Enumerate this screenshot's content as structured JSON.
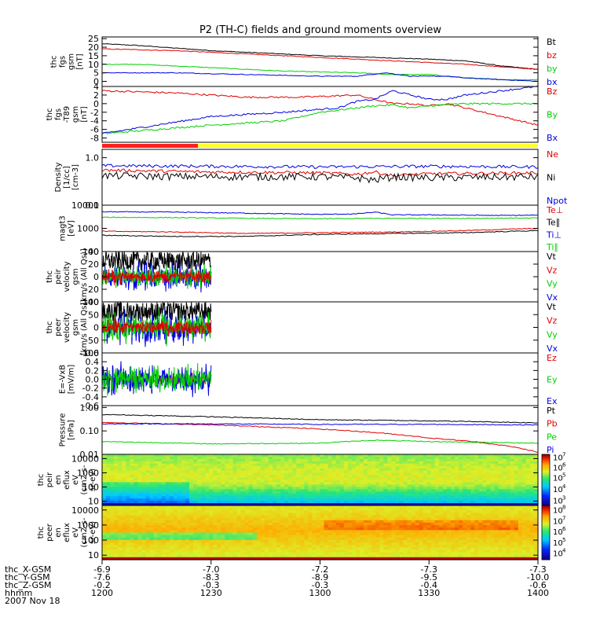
{
  "title": "P2 (TH-C) fields and ground moments overview",
  "colors": {
    "black": "#000000",
    "red": "#e00000",
    "green": "#00d000",
    "blue": "#0000e0",
    "yellow": "#ffff30"
  },
  "panels": [
    {
      "id": "fgs",
      "ylabel": [
        "thc",
        "fgs",
        "gsm",
        "[nT]"
      ],
      "ylim": [
        -3,
        26
      ],
      "scale": "linear",
      "ticks": [
        {
          "v": 25,
          "l": "25"
        },
        {
          "v": 20,
          "l": "20"
        },
        {
          "v": 15,
          "l": "15"
        },
        {
          "v": 10,
          "l": "10"
        },
        {
          "v": 5,
          "l": "5"
        },
        {
          "v": 0,
          "l": "0"
        }
      ],
      "legend": [
        {
          "text": "Bt",
          "color": "black"
        },
        {
          "text": "bz",
          "color": "red"
        },
        {
          "text": "by",
          "color": "green"
        },
        {
          "text": "bx",
          "color": "blue"
        }
      ]
    },
    {
      "id": "fgs_t89",
      "ylabel": [
        "thc",
        "fgs",
        "-T89",
        "gsm",
        "[nT]"
      ],
      "ylim": [
        -9,
        4
      ],
      "scale": "linear",
      "ticks": [
        {
          "v": 4,
          "l": "4"
        },
        {
          "v": 2,
          "l": "2"
        },
        {
          "v": 0,
          "l": "0"
        },
        {
          "v": -2,
          "l": "-2"
        },
        {
          "v": -4,
          "l": "-4"
        },
        {
          "v": -6,
          "l": "-6"
        },
        {
          "v": -8,
          "l": "-8"
        }
      ],
      "legend": [
        {
          "text": "Bz",
          "color": "red"
        },
        {
          "text": "By",
          "color": "green"
        },
        {
          "text": "Bx",
          "color": "blue"
        }
      ]
    },
    {
      "id": "density",
      "ylabel": [
        "Density",
        "[1/cc]",
        "[cm-3]"
      ],
      "ylim": [
        0.1,
        1.5
      ],
      "scale": "log",
      "ticks": [
        {
          "v": 1.0,
          "l": "1.0"
        },
        {
          "v": 0.1,
          "l": "0.1"
        }
      ],
      "legend": [
        {
          "text": "Ne",
          "color": "red"
        },
        {
          "text": "Ni",
          "color": "black"
        },
        {
          "text": "Npot",
          "color": "blue"
        }
      ]
    },
    {
      "id": "temp",
      "ylabel": [
        "magt3",
        "[eV]"
      ],
      "ylim": [
        100,
        10000
      ],
      "scale": "log",
      "ticks": [
        {
          "v": 10000,
          "l": "10000"
        },
        {
          "v": 1000,
          "l": "1000"
        },
        {
          "v": 100,
          "l": "100"
        }
      ],
      "legend": [
        {
          "text": "Te⊥",
          "color": "red"
        },
        {
          "text": "Te∥",
          "color": "black"
        },
        {
          "text": "Ti⊥",
          "color": "blue"
        },
        {
          "text": "Ti∥",
          "color": "green"
        }
      ]
    },
    {
      "id": "peir_vel",
      "ylabel": [
        "thc",
        "peir",
        "velocity",
        "gsm",
        "[km/s (All Qs)]"
      ],
      "ylim": [
        -40,
        40
      ],
      "scale": "linear",
      "ticks": [
        {
          "v": 40,
          "l": "40"
        },
        {
          "v": 20,
          "l": "20"
        },
        {
          "v": 0,
          "l": "0"
        },
        {
          "v": -20,
          "l": "-20"
        },
        {
          "v": -40,
          "l": "-40"
        }
      ],
      "legend": [
        {
          "text": "Vt",
          "color": "black"
        },
        {
          "text": "Vz",
          "color": "red"
        },
        {
          "text": "Vy",
          "color": "green"
        },
        {
          "text": "Vx",
          "color": "blue"
        }
      ]
    },
    {
      "id": "peer_vel",
      "ylabel": [
        "thc",
        "peer",
        "velocity",
        "gsm",
        "[km/s (All Qs)]"
      ],
      "ylim": [
        -100,
        100
      ],
      "scale": "linear",
      "ticks": [
        {
          "v": 100,
          "l": "100"
        },
        {
          "v": 50,
          "l": "50"
        },
        {
          "v": 0,
          "l": "0"
        },
        {
          "v": -50,
          "l": "-50"
        },
        {
          "v": -100,
          "l": "-100"
        }
      ],
      "legend": [
        {
          "text": "Vt",
          "color": "black"
        },
        {
          "text": "Vz",
          "color": "red"
        },
        {
          "text": "Vy",
          "color": "green"
        },
        {
          "text": "Vx",
          "color": "blue"
        }
      ]
    },
    {
      "id": "efield",
      "ylabel": [
        "E=-VxB",
        "[mV/m]"
      ],
      "ylim": [
        -0.6,
        0.6
      ],
      "scale": "linear",
      "ticks": [
        {
          "v": 0.6,
          "l": "0.6"
        },
        {
          "v": 0.4,
          "l": "0.4"
        },
        {
          "v": 0.2,
          "l": "0.2"
        },
        {
          "v": 0.0,
          "l": "0.0"
        },
        {
          "v": -0.2,
          "l": "-0.2"
        },
        {
          "v": -0.4,
          "l": "-0.4"
        },
        {
          "v": -0.6,
          "l": "-0.6"
        }
      ],
      "legend": [
        {
          "text": "Ez",
          "color": "red"
        },
        {
          "text": "Ey",
          "color": "green"
        },
        {
          "text": "Ex",
          "color": "blue"
        }
      ]
    },
    {
      "id": "pressure",
      "ylabel": [
        "Pressure",
        "[nPa]"
      ],
      "ylim": [
        0.01,
        1.2
      ],
      "scale": "log",
      "ticks": [
        {
          "v": 1.0,
          "l": "1.00"
        },
        {
          "v": 0.1,
          "l": "0.10"
        },
        {
          "v": 0.01,
          "l": "0.01"
        }
      ],
      "legend": [
        {
          "text": "Pt",
          "color": "black"
        },
        {
          "text": "Pb",
          "color": "red"
        },
        {
          "text": "Pe",
          "color": "green"
        },
        {
          "text": "Pi",
          "color": "blue"
        }
      ]
    },
    {
      "id": "peir_spec",
      "ylabel": [
        "thc",
        "peir",
        "en",
        "eflux",
        "eV",
        "(cm2-s-",
        "sr-eV)"
      ],
      "ylim": [
        5,
        20000
      ],
      "scale": "log",
      "ticks": [
        {
          "v": 10000,
          "l": "10000"
        },
        {
          "v": 1000,
          "l": "1000"
        },
        {
          "v": 100,
          "l": "100"
        },
        {
          "v": 10,
          "l": "10"
        }
      ],
      "cbar": [
        {
          "e": "7",
          "pos": 0.05
        },
        {
          "e": "6",
          "pos": 0.25
        },
        {
          "e": "5",
          "pos": 0.45
        },
        {
          "e": "4",
          "pos": 0.68
        },
        {
          "e": "3",
          "pos": 0.9
        }
      ]
    },
    {
      "id": "peer_spec",
      "ylabel": [
        "thc",
        "peer",
        "en",
        "eflux",
        "eV",
        "(cm2-s-",
        "sr-eV)"
      ],
      "ylim": [
        5,
        20000
      ],
      "scale": "log",
      "ticks": [
        {
          "v": 10000,
          "l": "10000"
        },
        {
          "v": 1000,
          "l": "1000"
        },
        {
          "v": 100,
          "l": "100"
        },
        {
          "v": 10,
          "l": "10"
        }
      ],
      "cbar": [
        {
          "e": "8",
          "pos": 0.08
        },
        {
          "e": "7",
          "pos": 0.28
        },
        {
          "e": "6",
          "pos": 0.48
        },
        {
          "e": "5",
          "pos": 0.68
        },
        {
          "e": "4",
          "pos": 0.88
        }
      ]
    }
  ],
  "chart_data": {
    "type": "line",
    "title": "P2 (TH-C) fields and ground moments overview",
    "x_range_minutes": [
      0,
      120
    ],
    "series": {
      "fgs": [
        {
          "name": "Bt",
          "color": "black",
          "x": [
            0,
            10,
            30,
            60,
            75,
            90,
            100,
            110,
            120
          ],
          "y": [
            22,
            21,
            18,
            15,
            14,
            13,
            12,
            9,
            7
          ]
        },
        {
          "name": "bz",
          "color": "red",
          "x": [
            0,
            20,
            40,
            60,
            80,
            100,
            120
          ],
          "y": [
            19,
            18,
            16,
            14,
            12,
            10,
            7
          ]
        },
        {
          "name": "by",
          "color": "green",
          "x": [
            0,
            10,
            30,
            50,
            70,
            80,
            90,
            100,
            110,
            120
          ],
          "y": [
            10,
            10,
            8,
            6,
            5,
            4,
            4,
            2,
            1,
            1
          ]
        },
        {
          "name": "bx",
          "color": "blue",
          "x": [
            0,
            20,
            40,
            60,
            70,
            78,
            85,
            95,
            100,
            110,
            120
          ],
          "y": [
            5,
            5,
            4,
            3,
            3,
            5,
            3,
            3,
            2,
            1,
            0
          ]
        }
      ],
      "fgs_t89": [
        {
          "name": "Bz",
          "color": "red",
          "x": [
            0,
            20,
            40,
            55,
            70,
            75,
            80,
            85,
            90,
            95,
            100,
            110,
            120
          ],
          "y": [
            3,
            2.5,
            1.5,
            1.5,
            2.0,
            1.0,
            0,
            0,
            -0.5,
            0,
            -1,
            -3,
            -5
          ]
        },
        {
          "name": "By",
          "color": "green",
          "x": [
            0,
            15,
            30,
            50,
            60,
            70,
            75,
            80,
            85,
            90,
            100,
            110,
            120
          ],
          "y": [
            -7,
            -6,
            -5,
            -4,
            -2,
            -1,
            -0.5,
            -0.3,
            -1,
            -0.5,
            0,
            0,
            0
          ]
        },
        {
          "name": "Bx",
          "color": "blue",
          "x": [
            0,
            15,
            30,
            50,
            65,
            70,
            75,
            80,
            85,
            90,
            95,
            100,
            110,
            120
          ],
          "y": [
            -7,
            -5,
            -3,
            -2,
            -1,
            0.5,
            1,
            3,
            2,
            1,
            1,
            2,
            3,
            4
          ]
        }
      ],
      "density": [
        {
          "name": "Npot",
          "color": "blue",
          "x": [
            0,
            30,
            60,
            90,
            120
          ],
          "y": [
            0.68,
            0.66,
            0.64,
            0.66,
            0.64
          ]
        },
        {
          "name": "Ne",
          "color": "red",
          "x": [
            0,
            30,
            60,
            70,
            75,
            80,
            90,
            120
          ],
          "y": [
            0.55,
            0.5,
            0.48,
            0.45,
            0.5,
            0.42,
            0.46,
            0.48
          ]
        },
        {
          "name": "Ni",
          "color": "black",
          "x": [
            0,
            30,
            60,
            70,
            75,
            80,
            90,
            120
          ],
          "y": [
            0.42,
            0.4,
            0.4,
            0.38,
            0.34,
            0.4,
            0.38,
            0.4
          ]
        }
      ],
      "temp": [
        {
          "name": "Ti⊥",
          "color": "blue",
          "x": [
            0,
            20,
            40,
            60,
            70,
            75,
            80,
            90,
            100,
            110,
            120
          ],
          "y": [
            5200,
            5000,
            4500,
            4000,
            4200,
            5000,
            3800,
            3800,
            3700,
            3600,
            3700
          ]
        },
        {
          "name": "Ti∥",
          "color": "green",
          "x": [
            0,
            20,
            40,
            60,
            80,
            100,
            120
          ],
          "y": [
            3000,
            2900,
            2700,
            2600,
            2700,
            2700,
            2800
          ]
        },
        {
          "name": "Te⊥",
          "color": "red",
          "x": [
            0,
            20,
            40,
            60,
            80,
            100,
            120
          ],
          "y": [
            750,
            700,
            600,
            650,
            700,
            800,
            1000
          ]
        },
        {
          "name": "Te∥",
          "color": "black",
          "x": [
            0,
            20,
            40,
            60,
            80,
            100,
            120
          ],
          "y": [
            500,
            450,
            450,
            550,
            600,
            650,
            800
          ]
        }
      ],
      "peir_vel": {
        "x_end": 30,
        "Vt": [
          0,
          40
        ],
        "Vz": [
          -15,
          15
        ],
        "Vy": [
          -25,
          25
        ],
        "Vx": [
          -30,
          30
        ]
      },
      "peer_vel": {
        "x_end": 30,
        "Vt": [
          0,
          100
        ],
        "Vz": [
          -40,
          40
        ],
        "Vy": [
          -80,
          80
        ],
        "Vx": [
          -90,
          90
        ]
      },
      "efield": {
        "x_end": 30,
        "Ez": [
          -0.2,
          0.2
        ],
        "Ey": [
          -0.4,
          0.4
        ],
        "Ex": [
          -0.5,
          0.5
        ]
      },
      "pressure": [
        {
          "name": "Pt",
          "color": "black",
          "x": [
            0,
            30,
            60,
            90,
            120
          ],
          "y": [
            0.5,
            0.4,
            0.3,
            0.27,
            0.22
          ]
        },
        {
          "name": "Pb",
          "color": "red",
          "x": [
            0,
            30,
            60,
            90,
            120
          ],
          "y": [
            0.23,
            0.18,
            0.12,
            0.05,
            0.012
          ]
        },
        {
          "name": "Pe",
          "color": "green",
          "x": [
            0,
            30,
            60,
            75,
            90,
            120
          ],
          "y": [
            0.035,
            0.028,
            0.03,
            0.04,
            0.035,
            0.03
          ]
        },
        {
          "name": "Pi",
          "color": "blue",
          "x": [
            0,
            30,
            60,
            90,
            120
          ],
          "y": [
            0.2,
            0.2,
            0.19,
            0.19,
            0.18
          ]
        }
      ]
    },
    "x_axis": {
      "row_labels": [
        "thc_X-GSM",
        "thc_Y-GSM",
        "thc_Z-GSM",
        "hhmm",
        "2007 Nov 18"
      ],
      "ticks": [
        {
          "minute": 0,
          "rows": [
            "-6.9",
            "-7.6",
            "-0.2",
            "1200"
          ]
        },
        {
          "minute": 30,
          "rows": [
            "-7.0",
            "-8.3",
            "-0.3",
            "1230"
          ]
        },
        {
          "minute": 60,
          "rows": [
            "-7.2",
            "-8.9",
            "-0.3",
            "1300"
          ]
        },
        {
          "minute": 90,
          "rows": [
            "-7.3",
            "-9.5",
            "-0.4",
            "1330"
          ]
        },
        {
          "minute": 120,
          "rows": [
            "-7.3",
            "-10.0",
            "-0.6",
            "1400"
          ]
        }
      ]
    }
  }
}
